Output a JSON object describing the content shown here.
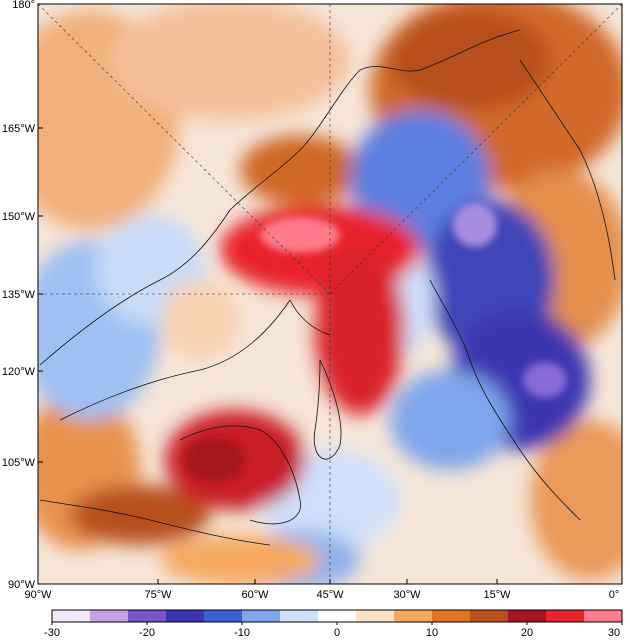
{
  "map": {
    "left_axis_labels": [
      "180°",
      "165°W",
      "150°W",
      "135°W",
      "120°W",
      "105°W",
      "90°W"
    ],
    "bottom_axis_labels": [
      "90°W",
      "75°W",
      "60°W",
      "45°W",
      "30°W",
      "15°W",
      "0°"
    ]
  },
  "colorbar": {
    "tick_labels": [
      "-30",
      "-20",
      "-10",
      "0",
      "10",
      "20",
      "30"
    ],
    "range": [
      -30,
      30
    ],
    "colors": [
      "#f3e6f7",
      "#c9a0e6",
      "#7a55c8",
      "#3a35b0",
      "#3a5ed8",
      "#7fa6ec",
      "#cfe0fb",
      "#ffffff",
      "#fde1c6",
      "#f6a85f",
      "#e07321",
      "#b8501c",
      "#a6161e",
      "#e8232c",
      "#ff7a8a"
    ]
  }
}
